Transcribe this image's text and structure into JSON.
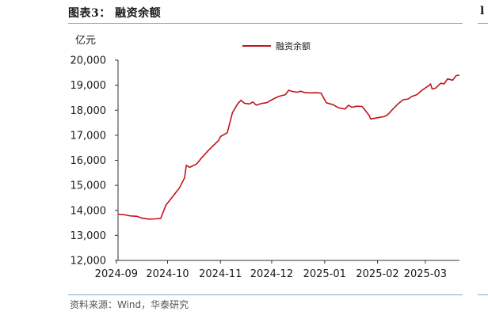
{
  "header": {
    "title": "图表3：  融资余额",
    "edge_title_fragment": "l"
  },
  "unit_label": "亿元",
  "source": "资料来源：Wind，华泰研究",
  "colors": {
    "series": "#c0151c",
    "axis": "#333333",
    "rule": "#8aa8c6"
  },
  "chart_data": {
    "type": "line",
    "title": "",
    "ylabel": "亿元",
    "xlabel": "",
    "ylim": [
      12000,
      20000
    ],
    "yticks": [
      12000,
      13000,
      14000,
      15000,
      16000,
      17000,
      18000,
      19000,
      20000
    ],
    "ytick_labels": [
      "12,000",
      "13,000",
      "14,000",
      "15,000",
      "16,000",
      "17,000",
      "18,000",
      "19,000",
      "20,000"
    ],
    "xlim": [
      "2024-09-02",
      "2025-03-21"
    ],
    "xticks": [
      "2024-09-01",
      "2024-10-01",
      "2024-11-01",
      "2024-12-01",
      "2025-01-01",
      "2025-02-01",
      "2025-03-01"
    ],
    "xtick_labels": [
      "2024-09",
      "2024-10",
      "2024-11",
      "2024-12",
      "2025-01",
      "2025-02",
      "2025-03"
    ],
    "legend": {
      "position": "top-center"
    },
    "grid": false,
    "series": [
      {
        "name": "融资余额",
        "color": "#c0151c",
        "points": [
          [
            "2024-09-02",
            13850
          ],
          [
            "2024-09-06",
            13820
          ],
          [
            "2024-09-09",
            13780
          ],
          [
            "2024-09-13",
            13760
          ],
          [
            "2024-09-16",
            13690
          ],
          [
            "2024-09-20",
            13650
          ],
          [
            "2024-09-24",
            13660
          ],
          [
            "2024-09-27",
            13680
          ],
          [
            "2024-09-30",
            14200
          ],
          [
            "2024-10-08",
            14900
          ],
          [
            "2024-10-11",
            15300
          ],
          [
            "2024-10-12",
            15800
          ],
          [
            "2024-10-14",
            15720
          ],
          [
            "2024-10-18",
            15850
          ],
          [
            "2024-10-21",
            16100
          ],
          [
            "2024-10-25",
            16400
          ],
          [
            "2024-10-28",
            16600
          ],
          [
            "2024-10-31",
            16800
          ],
          [
            "2024-11-01",
            16950
          ],
          [
            "2024-11-05",
            17100
          ],
          [
            "2024-11-08",
            17900
          ],
          [
            "2024-11-11",
            18250
          ],
          [
            "2024-11-13",
            18400
          ],
          [
            "2024-11-15",
            18280
          ],
          [
            "2024-11-18",
            18250
          ],
          [
            "2024-11-20",
            18330
          ],
          [
            "2024-11-22",
            18200
          ],
          [
            "2024-11-25",
            18270
          ],
          [
            "2024-11-28",
            18300
          ],
          [
            "2024-12-02",
            18450
          ],
          [
            "2024-12-05",
            18550
          ],
          [
            "2024-12-09",
            18620
          ],
          [
            "2024-12-11",
            18800
          ],
          [
            "2024-12-13",
            18750
          ],
          [
            "2024-12-16",
            18720
          ],
          [
            "2024-12-18",
            18760
          ],
          [
            "2024-12-20",
            18710
          ],
          [
            "2024-12-24",
            18690
          ],
          [
            "2024-12-27",
            18700
          ],
          [
            "2024-12-30",
            18680
          ],
          [
            "2025-01-02",
            18300
          ],
          [
            "2025-01-06",
            18220
          ],
          [
            "2025-01-09",
            18100
          ],
          [
            "2025-01-13",
            18050
          ],
          [
            "2025-01-15",
            18200
          ],
          [
            "2025-01-17",
            18120
          ],
          [
            "2025-01-20",
            18160
          ],
          [
            "2025-01-23",
            18150
          ],
          [
            "2025-01-27",
            17800
          ],
          [
            "2025-01-28",
            17650
          ],
          [
            "2025-02-05",
            17750
          ],
          [
            "2025-02-07",
            17820
          ],
          [
            "2025-02-10",
            18050
          ],
          [
            "2025-02-13",
            18250
          ],
          [
            "2025-02-16",
            18420
          ],
          [
            "2025-02-19",
            18450
          ],
          [
            "2025-02-21",
            18550
          ],
          [
            "2025-02-24",
            18620
          ],
          [
            "2025-02-27",
            18800
          ],
          [
            "2025-03-03",
            18980
          ],
          [
            "2025-03-04",
            19050
          ],
          [
            "2025-03-05",
            18850
          ],
          [
            "2025-03-07",
            18880
          ],
          [
            "2025-03-10",
            19080
          ],
          [
            "2025-03-12",
            19050
          ],
          [
            "2025-03-14",
            19250
          ],
          [
            "2025-03-17",
            19200
          ],
          [
            "2025-03-19",
            19380
          ],
          [
            "2025-03-21",
            19400
          ]
        ]
      }
    ]
  }
}
